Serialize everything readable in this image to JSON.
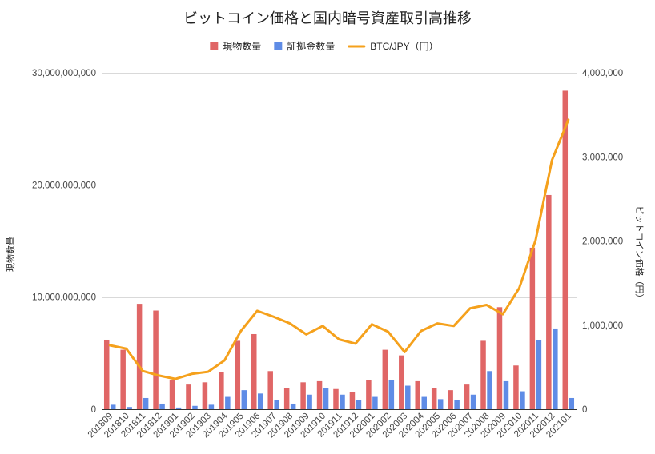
{
  "chart_data": {
    "type": "bar",
    "title": "ビットコイン価格と国内暗号資産取引高推移",
    "ylabel": "現物数量",
    "y2label": "ビットコイン価格（円）",
    "ylim": [
      0,
      30000000000
    ],
    "y2lim": [
      0,
      4000000
    ],
    "yticks": [
      0,
      10000000000,
      20000000000,
      30000000000
    ],
    "y2ticks": [
      0,
      1000000,
      2000000,
      3000000,
      4000000
    ],
    "grid": true,
    "legend": "top",
    "categories": [
      "201809",
      "201810",
      "201811",
      "201812",
      "201901",
      "201902",
      "201903",
      "201904",
      "201905",
      "201906",
      "201907",
      "201908",
      "201909",
      "201910",
      "201911",
      "201912",
      "202001",
      "202002",
      "202003",
      "202004",
      "202005",
      "202006",
      "202007",
      "202008",
      "202009",
      "202010",
      "202011",
      "202012",
      "202101"
    ],
    "series": [
      {
        "name": "現物数量",
        "type": "bar",
        "axis": "left",
        "color": "#e06666",
        "values": [
          6200000000,
          5300000000,
          9400000000,
          8800000000,
          2600000000,
          2200000000,
          2400000000,
          3300000000,
          6100000000,
          6700000000,
          3400000000,
          1900000000,
          2400000000,
          2500000000,
          1800000000,
          1500000000,
          2600000000,
          5300000000,
          4800000000,
          2500000000,
          1900000000,
          1700000000,
          2200000000,
          6100000000,
          9100000000,
          3900000000,
          14400000000,
          19100000000,
          28400000000
        ]
      },
      {
        "name": "証拠金数量",
        "type": "bar",
        "axis": "left",
        "color": "#5f8ce6",
        "values": [
          400000000,
          200000000,
          1000000000,
          500000000,
          150000000,
          300000000,
          400000000,
          1100000000,
          1700000000,
          1400000000,
          800000000,
          500000000,
          1300000000,
          1900000000,
          1300000000,
          800000000,
          1100000000,
          2600000000,
          2100000000,
          1100000000,
          900000000,
          800000000,
          1300000000,
          3400000000,
          2500000000,
          1600000000,
          6200000000,
          7200000000,
          1000000000
        ]
      },
      {
        "name": "BTC/JPY（円）",
        "type": "line",
        "axis": "right",
        "color": "#f5a11c",
        "values": [
          760000,
          720000,
          455000,
          400000,
          360000,
          420000,
          445000,
          580000,
          930000,
          1170000,
          1100000,
          1020000,
          890000,
          990000,
          830000,
          780000,
          1010000,
          920000,
          680000,
          930000,
          1020000,
          990000,
          1200000,
          1240000,
          1130000,
          1440000,
          2010000,
          2960000,
          3440000
        ]
      }
    ]
  }
}
